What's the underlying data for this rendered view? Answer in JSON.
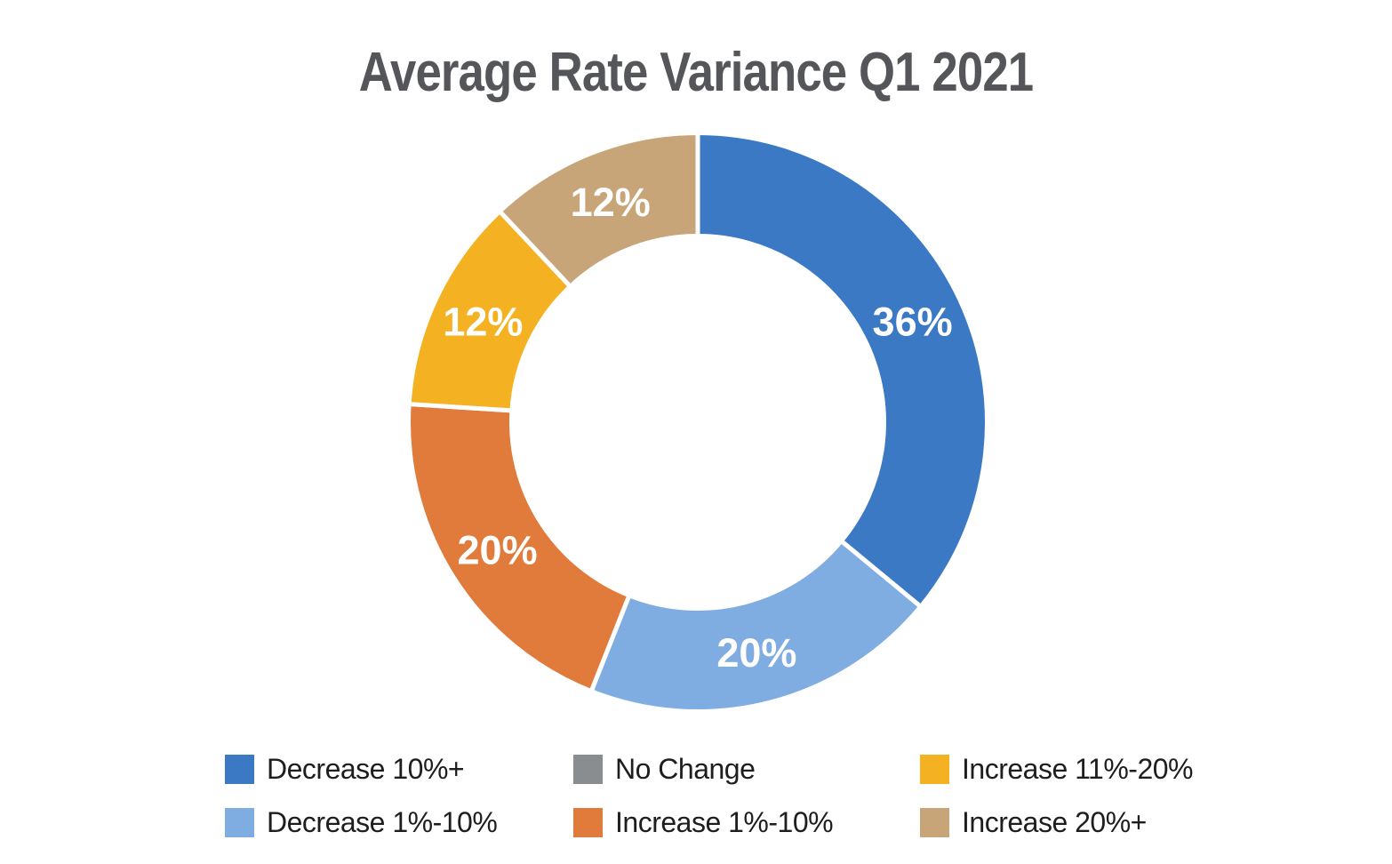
{
  "chart_data": {
    "type": "donut",
    "title": "Average Rate Variance Q1 2021",
    "unit": "%",
    "start_angle": "top",
    "direction": "clockwise",
    "hole_ratio": 0.65,
    "segments": [
      {
        "label": "Decrease 10%+",
        "value": 36,
        "data_label": "36%",
        "color": "#3B79C5"
      },
      {
        "label": "Decrease 1%-10%",
        "value": 20,
        "data_label": "20%",
        "color": "#7FACE1"
      },
      {
        "label": "Increase 1%-10%",
        "value": 20,
        "data_label": "20%",
        "color": "#E07B3C"
      },
      {
        "label": "Increase 11%-20%",
        "value": 12,
        "data_label": "12%",
        "color": "#F4B121"
      },
      {
        "label": "Increase 20%+",
        "value": 12,
        "data_label": "12%",
        "color": "#C7A578"
      },
      {
        "label": "No Change",
        "value": 0,
        "data_label": "",
        "color": "#8A8D90"
      }
    ],
    "legend": {
      "position": "bottom",
      "items": [
        {
          "label": "Decrease 10%+",
          "color": "#3B79C5"
        },
        {
          "label": "No Change",
          "color": "#8A8D90"
        },
        {
          "label": "Increase 11%-20%",
          "color": "#F4B121"
        },
        {
          "label": "Decrease 1%-10%",
          "color": "#7FACE1"
        },
        {
          "label": "Increase 1%-10%",
          "color": "#E07B3C"
        },
        {
          "label": "Increase 20%+",
          "color": "#C7A578"
        }
      ]
    }
  },
  "colors": {
    "background": "#FFFFFF",
    "title_text": "#55565A",
    "segment_label_text": "#FFFFFF",
    "legend_text": "#1E1E1E",
    "segment_gap": "#FFFFFF"
  }
}
